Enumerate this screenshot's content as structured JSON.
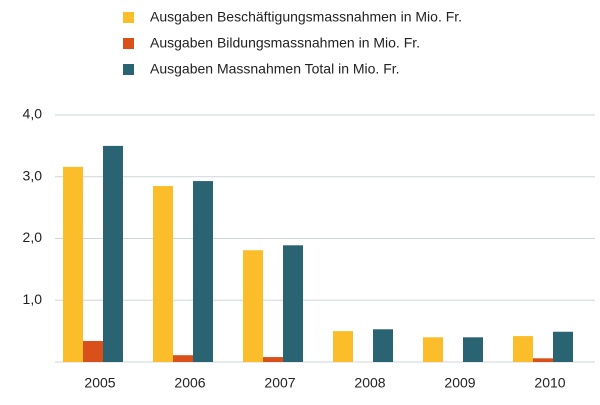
{
  "chart_data": {
    "type": "bar",
    "categories": [
      "2005",
      "2006",
      "2007",
      "2008",
      "2009",
      "2010"
    ],
    "series": [
      {
        "name": "Ausgaben Beschäftigungsmassnahmen in Mio. Fr.",
        "color": "#fbbd2a",
        "values": [
          3.16,
          2.85,
          1.81,
          0.5,
          0.4,
          0.42
        ]
      },
      {
        "name": "Ausgaben Bildungsmassnahmen in Mio. Fr.",
        "color": "#d9501a",
        "values": [
          0.34,
          0.11,
          0.08,
          0,
          0,
          0.06
        ]
      },
      {
        "name": "Ausgaben Massnahmen Total in Mio. Fr.",
        "color": "#2a6472",
        "values": [
          3.5,
          2.93,
          1.89,
          0.53,
          0.4,
          0.49
        ]
      }
    ],
    "ylim": [
      0,
      4
    ],
    "yticks": [
      {
        "value": 1,
        "label": "1,0"
      },
      {
        "value": 2,
        "label": "2,0"
      },
      {
        "value": 3,
        "label": "3,0"
      },
      {
        "value": 4,
        "label": "4,0"
      }
    ],
    "grid": true,
    "legend": "top"
  }
}
